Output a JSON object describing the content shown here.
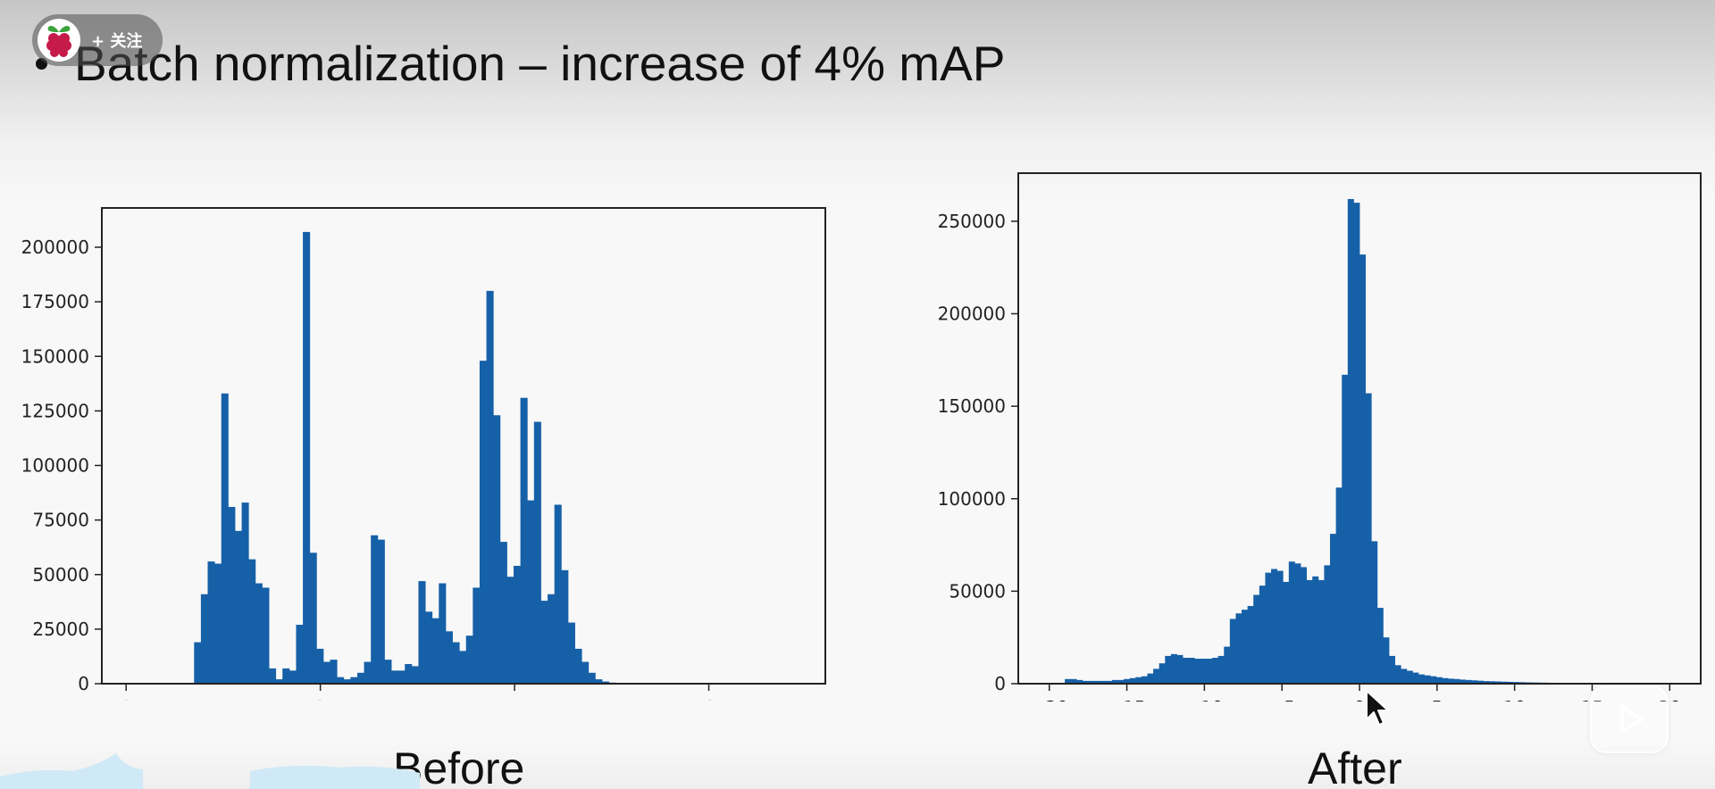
{
  "overlay": {
    "follow_label": "+ 关注",
    "avatar_icon": "raspberry-icon",
    "play_icon": "play-icon"
  },
  "slide": {
    "title": "Batch normalization – increase of 4% mAP"
  },
  "colors": {
    "bar": "#1660a8",
    "axis": "#222222"
  },
  "chart_data": [
    {
      "type": "bar",
      "caption": "Before",
      "xlim": [
        -0.25,
        7.2
      ],
      "ylim": [
        0,
        218000
      ],
      "xticks": [
        "0",
        "2",
        "4",
        "6"
      ],
      "yticks": [
        "0",
        "25000",
        "50000",
        "75000",
        "100000",
        "125000",
        "150000",
        "175000",
        "200000"
      ],
      "bin_width": 0.0705,
      "x": [
        0.7,
        0.77,
        0.84,
        0.91,
        0.98,
        1.05,
        1.12,
        1.19,
        1.26,
        1.33,
        1.4,
        1.47,
        1.54,
        1.61,
        1.68,
        1.75,
        1.82,
        1.89,
        1.96,
        2.03,
        2.1,
        2.17,
        2.24,
        2.31,
        2.38,
        2.45,
        2.52,
        2.59,
        2.66,
        2.73,
        2.8,
        2.87,
        2.94,
        3.01,
        3.08,
        3.15,
        3.22,
        3.29,
        3.36,
        3.43,
        3.5,
        3.57,
        3.64,
        3.71,
        3.78,
        3.85,
        3.92,
        3.99,
        4.06,
        4.13,
        4.2,
        4.27,
        4.34,
        4.41,
        4.48,
        4.55,
        4.62,
        4.69,
        4.76,
        4.83,
        4.9,
        4.97,
        5.04,
        5.11,
        5.18,
        5.25,
        5.32,
        5.39,
        5.46,
        5.53,
        5.6,
        5.67,
        5.74,
        5.81,
        5.88,
        5.95
      ],
      "values": [
        19000,
        41000,
        56000,
        55000,
        133000,
        81000,
        70000,
        83000,
        57000,
        46000,
        44000,
        7000,
        2000,
        7000,
        6000,
        27000,
        207000,
        60000,
        16000,
        10000,
        11000,
        3000,
        2000,
        3000,
        5000,
        10000,
        68000,
        66000,
        11000,
        6000,
        6000,
        9000,
        8000,
        47000,
        33000,
        30000,
        46000,
        24000,
        19000,
        15000,
        22000,
        44000,
        148000,
        180000,
        123000,
        65000,
        49000,
        54000,
        131000,
        84000,
        120000,
        38000,
        41000,
        82000,
        52000,
        28000,
        16000,
        10000,
        5000,
        2000,
        1000,
        500,
        0,
        0,
        0,
        0,
        0,
        0,
        0,
        0,
        0,
        0,
        0,
        0,
        0,
        0
      ]
    },
    {
      "type": "bar",
      "caption": "After",
      "xlim": [
        -22,
        22
      ],
      "ylim": [
        0,
        276000
      ],
      "xticks": [
        "−20",
        "−15",
        "−10",
        "−5",
        "0",
        "5",
        "10",
        "15",
        "20"
      ],
      "yticks": [
        "0",
        "50000",
        "100000",
        "150000",
        "200000",
        "250000"
      ],
      "bin_width": 0.38,
      "x": [
        -19.0,
        -18.62,
        -18.24,
        -17.86,
        -17.48,
        -17.1,
        -16.72,
        -16.34,
        -15.96,
        -15.58,
        -15.2,
        -14.82,
        -14.44,
        -14.06,
        -13.68,
        -13.3,
        -12.92,
        -12.54,
        -12.16,
        -11.78,
        -11.4,
        -11.02,
        -10.64,
        -10.26,
        -9.88,
        -9.5,
        -9.12,
        -8.74,
        -8.36,
        -7.98,
        -7.6,
        -7.22,
        -6.84,
        -6.46,
        -6.08,
        -5.7,
        -5.32,
        -4.94,
        -4.56,
        -4.18,
        -3.8,
        -3.42,
        -3.04,
        -2.66,
        -2.28,
        -1.9,
        -1.52,
        -1.14,
        -0.76,
        -0.38,
        0.0,
        0.38,
        0.76,
        1.14,
        1.52,
        1.9,
        2.28,
        2.66,
        3.04,
        3.42,
        3.8,
        4.18,
        4.56,
        4.94,
        5.32,
        5.7,
        6.08,
        6.46,
        6.84,
        7.22,
        7.6,
        7.98,
        8.36,
        8.74,
        9.12,
        9.5,
        9.88,
        10.26,
        10.64,
        11.02,
        11.4,
        11.78,
        12.16,
        12.54,
        12.92,
        13.3,
        13.68,
        14.06,
        14.44,
        14.82,
        15.2,
        15.58,
        15.96,
        16.34,
        16.72,
        17.1,
        17.48,
        17.86,
        18.24,
        18.62
      ],
      "values": [
        2500,
        2500,
        2000,
        1500,
        1500,
        1500,
        1500,
        1500,
        2000,
        2000,
        2500,
        3000,
        3500,
        4000,
        5500,
        8000,
        11000,
        15000,
        16000,
        15500,
        14000,
        14000,
        13500,
        13500,
        13500,
        14000,
        15000,
        20000,
        35000,
        38000,
        40000,
        42000,
        48000,
        53000,
        60000,
        62000,
        61000,
        55000,
        66000,
        65000,
        63000,
        56000,
        58000,
        56000,
        64000,
        81000,
        106000,
        167000,
        262000,
        260000,
        232000,
        157000,
        77000,
        41000,
        25000,
        15000,
        10000,
        8000,
        7000,
        6000,
        5000,
        4500,
        4000,
        3500,
        3000,
        2700,
        2500,
        2200,
        2000,
        1800,
        1600,
        1400,
        1300,
        1200,
        1100,
        1000,
        900,
        800,
        700,
        650,
        600,
        550,
        500,
        450,
        400,
        350,
        300,
        250,
        200,
        150,
        120,
        100,
        80,
        60,
        40,
        30,
        20,
        10,
        0,
        0
      ]
    }
  ]
}
